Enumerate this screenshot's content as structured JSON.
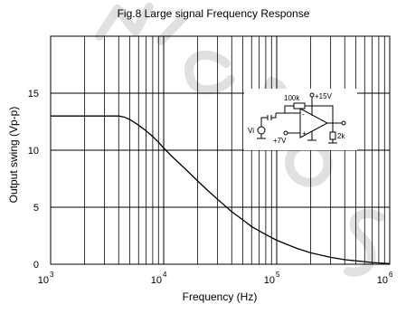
{
  "chart_data": {
    "type": "line",
    "title": "Fig.8 Large signal Frequency Response",
    "xlabel": "Frequency (Hz)",
    "ylabel": "Output swing (Vp-p)",
    "xscale": "log",
    "xlim": [
      1000,
      1000000
    ],
    "ylim": [
      0,
      20
    ],
    "grid": true,
    "x_ticks": [
      {
        "base": "10",
        "exp": "3",
        "value": 1000
      },
      {
        "base": "10",
        "exp": "4",
        "value": 10000
      },
      {
        "base": "10",
        "exp": "5",
        "value": 100000
      },
      {
        "base": "10",
        "exp": "6",
        "value": 1000000
      }
    ],
    "y_ticks": [
      0,
      5,
      10,
      15
    ],
    "series": [
      {
        "x": [
          1000,
          2000,
          3000,
          4000,
          4500,
          5000,
          6000,
          7000,
          8000,
          9000,
          10000,
          12000,
          15000,
          20000,
          25000,
          30000,
          40000,
          50000,
          60000,
          80000,
          100000,
          150000,
          200000,
          300000,
          400000,
          500000,
          700000,
          1000000
        ],
        "y": [
          13,
          13,
          13,
          13,
          12.9,
          12.7,
          12.2,
          11.7,
          11.2,
          10.7,
          10.2,
          9.4,
          8.5,
          7.3,
          6.4,
          5.7,
          4.6,
          3.9,
          3.3,
          2.6,
          2.1,
          1.4,
          1.0,
          0.6,
          0.4,
          0.3,
          0.15,
          0.05
        ]
      }
    ],
    "inset": {
      "r_feedback": "100k",
      "supply": "+15V",
      "input_label": "Vi",
      "bias": "+7V",
      "r_load": "2k",
      "inv_sign": "-",
      "noninv_sign": "+"
    },
    "watermark": "MICRO S"
  }
}
